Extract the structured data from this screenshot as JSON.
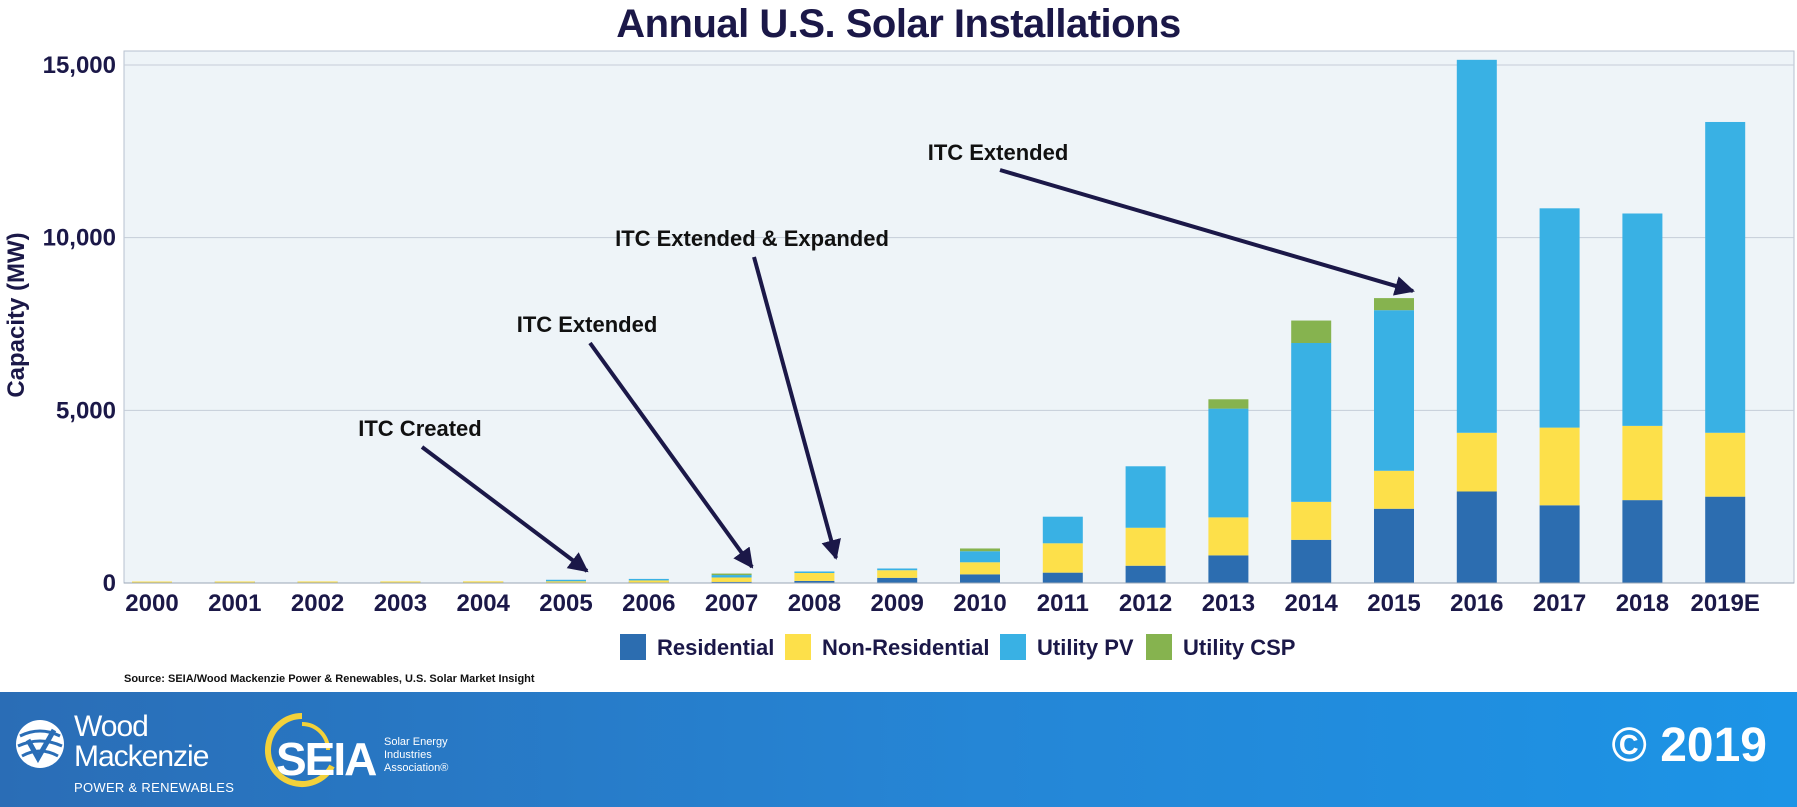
{
  "chart_data": {
    "type": "stacked-bar",
    "title": "Annual U.S. Solar Installations",
    "ylabel": "Capacity (MW)",
    "xlabel": "",
    "ylim": [
      0,
      15000
    ],
    "yticks": [
      0,
      5000,
      10000,
      15000
    ],
    "ytick_labels": [
      "0",
      "5,000",
      "10,000",
      "15,000"
    ],
    "grid": true,
    "legend_position": "bottom",
    "categories": [
      "2000",
      "2001",
      "2002",
      "2003",
      "2004",
      "2005",
      "2006",
      "2007",
      "2008",
      "2009",
      "2010",
      "2011",
      "2012",
      "2013",
      "2014",
      "2015",
      "2016",
      "2017",
      "2018",
      "2019E"
    ],
    "series": [
      {
        "name": "Residential",
        "color": "#2c6db0",
        "values": [
          0,
          1,
          2,
          3,
          5,
          10,
          15,
          30,
          60,
          150,
          250,
          300,
          500,
          800,
          1250,
          2150,
          2650,
          2250,
          2400,
          2500
        ]
      },
      {
        "name": "Non-Residential",
        "color": "#fde04a",
        "values": [
          2,
          3,
          10,
          20,
          30,
          40,
          60,
          130,
          230,
          220,
          350,
          850,
          1100,
          1100,
          1100,
          1100,
          1700,
          2250,
          2150,
          1850
        ]
      },
      {
        "name": "Utility PV",
        "color": "#39b1e4",
        "values": [
          0,
          0,
          0,
          0,
          0,
          1,
          2,
          70,
          30,
          50,
          320,
          770,
          1780,
          3150,
          4600,
          4650,
          10800,
          6350,
          6150,
          9000
        ]
      },
      {
        "name": "Utility CSP",
        "color": "#86b34f",
        "values": [
          0,
          0,
          0,
          0,
          0,
          0,
          0,
          30,
          0,
          0,
          80,
          0,
          0,
          270,
          650,
          350,
          0,
          0,
          0,
          0
        ]
      }
    ],
    "annotations": [
      {
        "text": "ITC Created",
        "target": "2005"
      },
      {
        "text": "ITC Extended",
        "target": "2007"
      },
      {
        "text": "ITC Extended & Expanded",
        "target": "2008"
      },
      {
        "text": "ITC Extended",
        "target": "2015"
      }
    ]
  },
  "source": "Source: SEIA/Wood Mackenzie Power & Renewables, U.S. Solar Market Insight",
  "footer": {
    "wood_mackenzie": {
      "line1": "Wood",
      "line2": "Mackenzie",
      "subtitle": "POWER & RENEWABLES"
    },
    "seia": {
      "wordmark": "SEIA",
      "tagline": "Solar Energy Industries Association®"
    },
    "copyright": "© 2019"
  }
}
